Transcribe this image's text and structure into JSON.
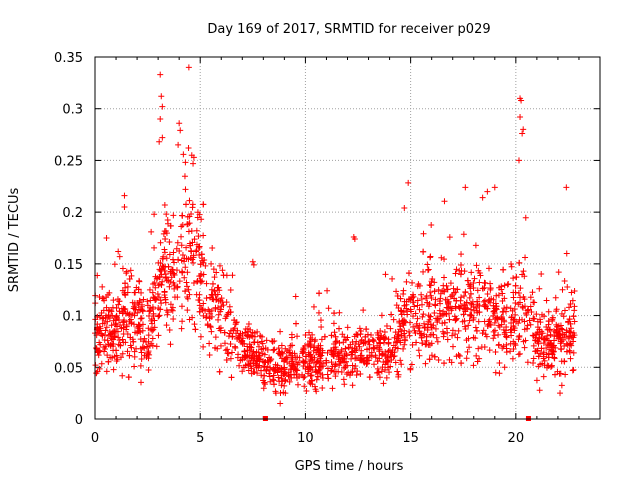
{
  "chart_data": {
    "type": "scatter",
    "title": "Day 169 of 2017, SRMTID for receiver p029",
    "xlabel": "GPS time / hours",
    "ylabel": "SRMTID / TECUs",
    "xlim": [
      0,
      24
    ],
    "ylim": [
      0,
      0.35
    ],
    "grid": true,
    "marker": "+",
    "color": "#ff0000",
    "x_ticks": [
      0,
      5,
      10,
      15,
      20
    ],
    "x_tick_labels": [
      "0",
      "5",
      "10",
      "15",
      "20"
    ],
    "y_ticks": [
      0,
      0.05,
      0.1,
      0.15,
      0.2,
      0.25,
      0.3,
      0.35
    ],
    "y_tick_labels": [
      "0",
      "0.05",
      "0.1",
      "0.15",
      "0.2",
      "0.25",
      "0.3",
      "0.35"
    ],
    "gap_markers_x": [
      8.1,
      20.6
    ],
    "points_count": 2200,
    "profile_hours": [
      0,
      1,
      2,
      2.5,
      3,
      3.3,
      4,
      4.4,
      5,
      5.5,
      6,
      6.5,
      7,
      8,
      9,
      10,
      11,
      12,
      13,
      14,
      14.5,
      15,
      16,
      17,
      18,
      19,
      19.5,
      20,
      20.5,
      21,
      22,
      22.8
    ],
    "profile_level": [
      0.085,
      0.09,
      0.1,
      0.08,
      0.12,
      0.15,
      0.13,
      0.17,
      0.14,
      0.11,
      0.1,
      0.08,
      0.065,
      0.055,
      0.05,
      0.055,
      0.06,
      0.06,
      0.065,
      0.065,
      0.09,
      0.1,
      0.1,
      0.11,
      0.11,
      0.1,
      0.09,
      0.1,
      0.11,
      0.075,
      0.075,
      0.09
    ],
    "spikes": [
      {
        "x": 3.1,
        "y": 0.333
      },
      {
        "x": 3.15,
        "y": 0.312
      },
      {
        "x": 3.2,
        "y": 0.302
      },
      {
        "x": 3.1,
        "y": 0.29
      },
      {
        "x": 3.2,
        "y": 0.272
      },
      {
        "x": 3.05,
        "y": 0.268
      },
      {
        "x": 4.0,
        "y": 0.286
      },
      {
        "x": 4.05,
        "y": 0.279
      },
      {
        "x": 3.95,
        "y": 0.265
      },
      {
        "x": 4.6,
        "y": 0.255
      },
      {
        "x": 4.7,
        "y": 0.253
      },
      {
        "x": 4.3,
        "y": 0.222
      },
      {
        "x": 20.2,
        "y": 0.31
      },
      {
        "x": 20.25,
        "y": 0.308
      },
      {
        "x": 20.2,
        "y": 0.292
      },
      {
        "x": 20.3,
        "y": 0.276
      },
      {
        "x": 20.35,
        "y": 0.28
      },
      {
        "x": 20.15,
        "y": 0.25
      },
      {
        "x": 17.6,
        "y": 0.224
      },
      {
        "x": 19.0,
        "y": 0.224
      },
      {
        "x": 22.4,
        "y": 0.224
      },
      {
        "x": 1.4,
        "y": 0.216
      },
      {
        "x": 1.4,
        "y": 0.205
      },
      {
        "x": 14.7,
        "y": 0.204
      },
      {
        "x": 12.3,
        "y": 0.176
      },
      {
        "x": 12.35,
        "y": 0.174
      },
      {
        "x": 7.5,
        "y": 0.152
      },
      {
        "x": 7.55,
        "y": 0.149
      },
      {
        "x": 8.6,
        "y": 0.025
      },
      {
        "x": 8.8,
        "y": 0.015
      },
      {
        "x": 10.8,
        "y": 0.03
      },
      {
        "x": 22.1,
        "y": 0.025
      }
    ]
  }
}
